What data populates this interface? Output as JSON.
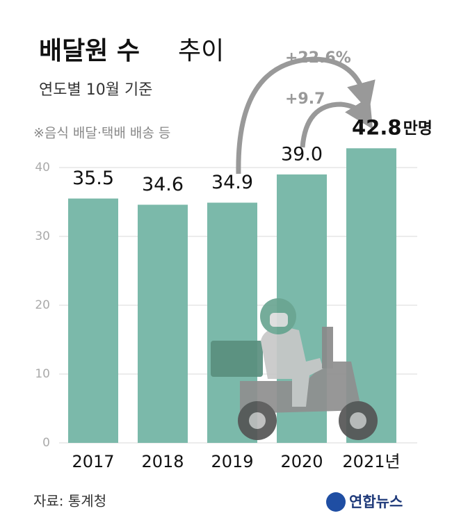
{
  "chart_data": {
    "type": "bar",
    "title": "배달원 수",
    "title_suffix": "추이",
    "subtitle": "연도별 10월 기준",
    "note": "※음식 배달·택배 배송 등",
    "categories": [
      "2017",
      "2018",
      "2019",
      "2020",
      "2021년"
    ],
    "values": [
      35.5,
      34.6,
      34.9,
      39.0,
      42.8
    ],
    "value_labels": [
      "35.5",
      "34.6",
      "34.9",
      "39.0",
      "42.8"
    ],
    "value_label_suffix": "만명",
    "color": "#7bb9aa",
    "ylim": [
      0,
      45
    ],
    "yticks": [
      0,
      10,
      20,
      30,
      40
    ],
    "grid": true,
    "annotations": [
      "+22.6%",
      "+9.7"
    ],
    "source": "자료: 통계청",
    "logo": "연합뉴스"
  }
}
